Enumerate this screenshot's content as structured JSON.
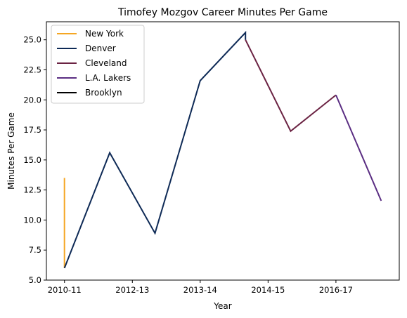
{
  "chart_data": {
    "type": "line",
    "title": "Timofey Mozgov Career Minutes Per Game",
    "xlabel": "Year",
    "ylabel": "Minutes Per Game",
    "ylim": [
      5.0,
      26.5
    ],
    "xlim": [
      -0.4,
      7.4
    ],
    "yticks": [
      5.0,
      7.5,
      10.0,
      12.5,
      15.0,
      17.5,
      20.0,
      22.5,
      25.0
    ],
    "ytick_labels": [
      "5.0",
      "7.5",
      "10.0",
      "12.5",
      "15.0",
      "17.5",
      "20.0",
      "22.5",
      "25.0"
    ],
    "xticks": [
      0,
      1.5,
      3,
      4.5,
      6
    ],
    "xtick_labels": [
      "2010-11",
      "2012-13",
      "2013-14",
      "2014-15",
      "2016-17"
    ],
    "grid": false,
    "legend_position": "top-left",
    "series": [
      {
        "name": "New York",
        "color": "#f5a623",
        "x": [
          0,
          0
        ],
        "y": [
          13.5,
          6.0
        ]
      },
      {
        "name": "Denver",
        "color": "#0e2a56",
        "x": [
          0,
          1,
          2,
          3,
          4,
          4
        ],
        "y": [
          6.0,
          15.6,
          8.9,
          21.6,
          25.6,
          25.0
        ]
      },
      {
        "name": "Cleveland",
        "color": "#6b2343",
        "x": [
          4,
          5,
          6
        ],
        "y": [
          25.0,
          17.4,
          20.4
        ]
      },
      {
        "name": "L.A. Lakers",
        "color": "#5a2d82",
        "x": [
          6,
          7
        ],
        "y": [
          20.4,
          11.6
        ]
      },
      {
        "name": "Brooklyn",
        "color": "#000000",
        "x": [],
        "y": []
      }
    ]
  }
}
